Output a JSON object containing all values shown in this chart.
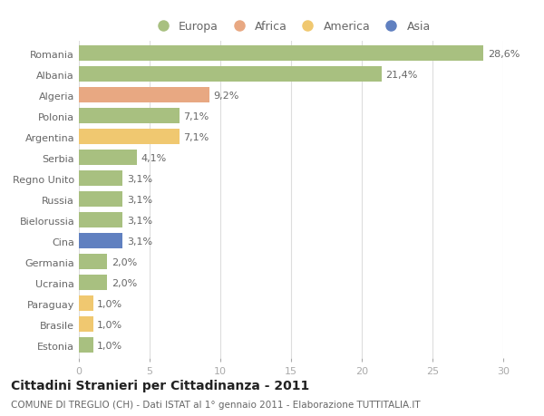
{
  "categories": [
    "Romania",
    "Albania",
    "Algeria",
    "Polonia",
    "Argentina",
    "Serbia",
    "Regno Unito",
    "Russia",
    "Bielorussia",
    "Cina",
    "Germania",
    "Ucraina",
    "Paraguay",
    "Brasile",
    "Estonia"
  ],
  "values": [
    28.6,
    21.4,
    9.2,
    7.1,
    7.1,
    4.1,
    3.1,
    3.1,
    3.1,
    3.1,
    2.0,
    2.0,
    1.0,
    1.0,
    1.0
  ],
  "labels": [
    "28,6%",
    "21,4%",
    "9,2%",
    "7,1%",
    "7,1%",
    "4,1%",
    "3,1%",
    "3,1%",
    "3,1%",
    "3,1%",
    "2,0%",
    "2,0%",
    "1,0%",
    "1,0%",
    "1,0%"
  ],
  "colors": [
    "#a8c080",
    "#a8c080",
    "#e8a882",
    "#a8c080",
    "#f0c870",
    "#a8c080",
    "#a8c080",
    "#a8c080",
    "#a8c080",
    "#6080c0",
    "#a8c080",
    "#a8c080",
    "#f0c870",
    "#f0c870",
    "#a8c080"
  ],
  "legend_labels": [
    "Europa",
    "Africa",
    "America",
    "Asia"
  ],
  "legend_colors": [
    "#a8c080",
    "#e8a882",
    "#f0c870",
    "#6080c0"
  ],
  "title": "Cittadini Stranieri per Cittadinanza - 2011",
  "subtitle": "COMUNE DI TREGLIO (CH) - Dati ISTAT al 1° gennaio 2011 - Elaborazione TUTTITALIA.IT",
  "xlim": [
    0,
    30
  ],
  "xticks": [
    0,
    5,
    10,
    15,
    20,
    25,
    30
  ],
  "background_color": "#ffffff",
  "grid_color": "#dddddd",
  "bar_height": 0.75,
  "label_fontsize": 8,
  "tick_fontsize": 8,
  "title_fontsize": 10,
  "subtitle_fontsize": 7.5
}
